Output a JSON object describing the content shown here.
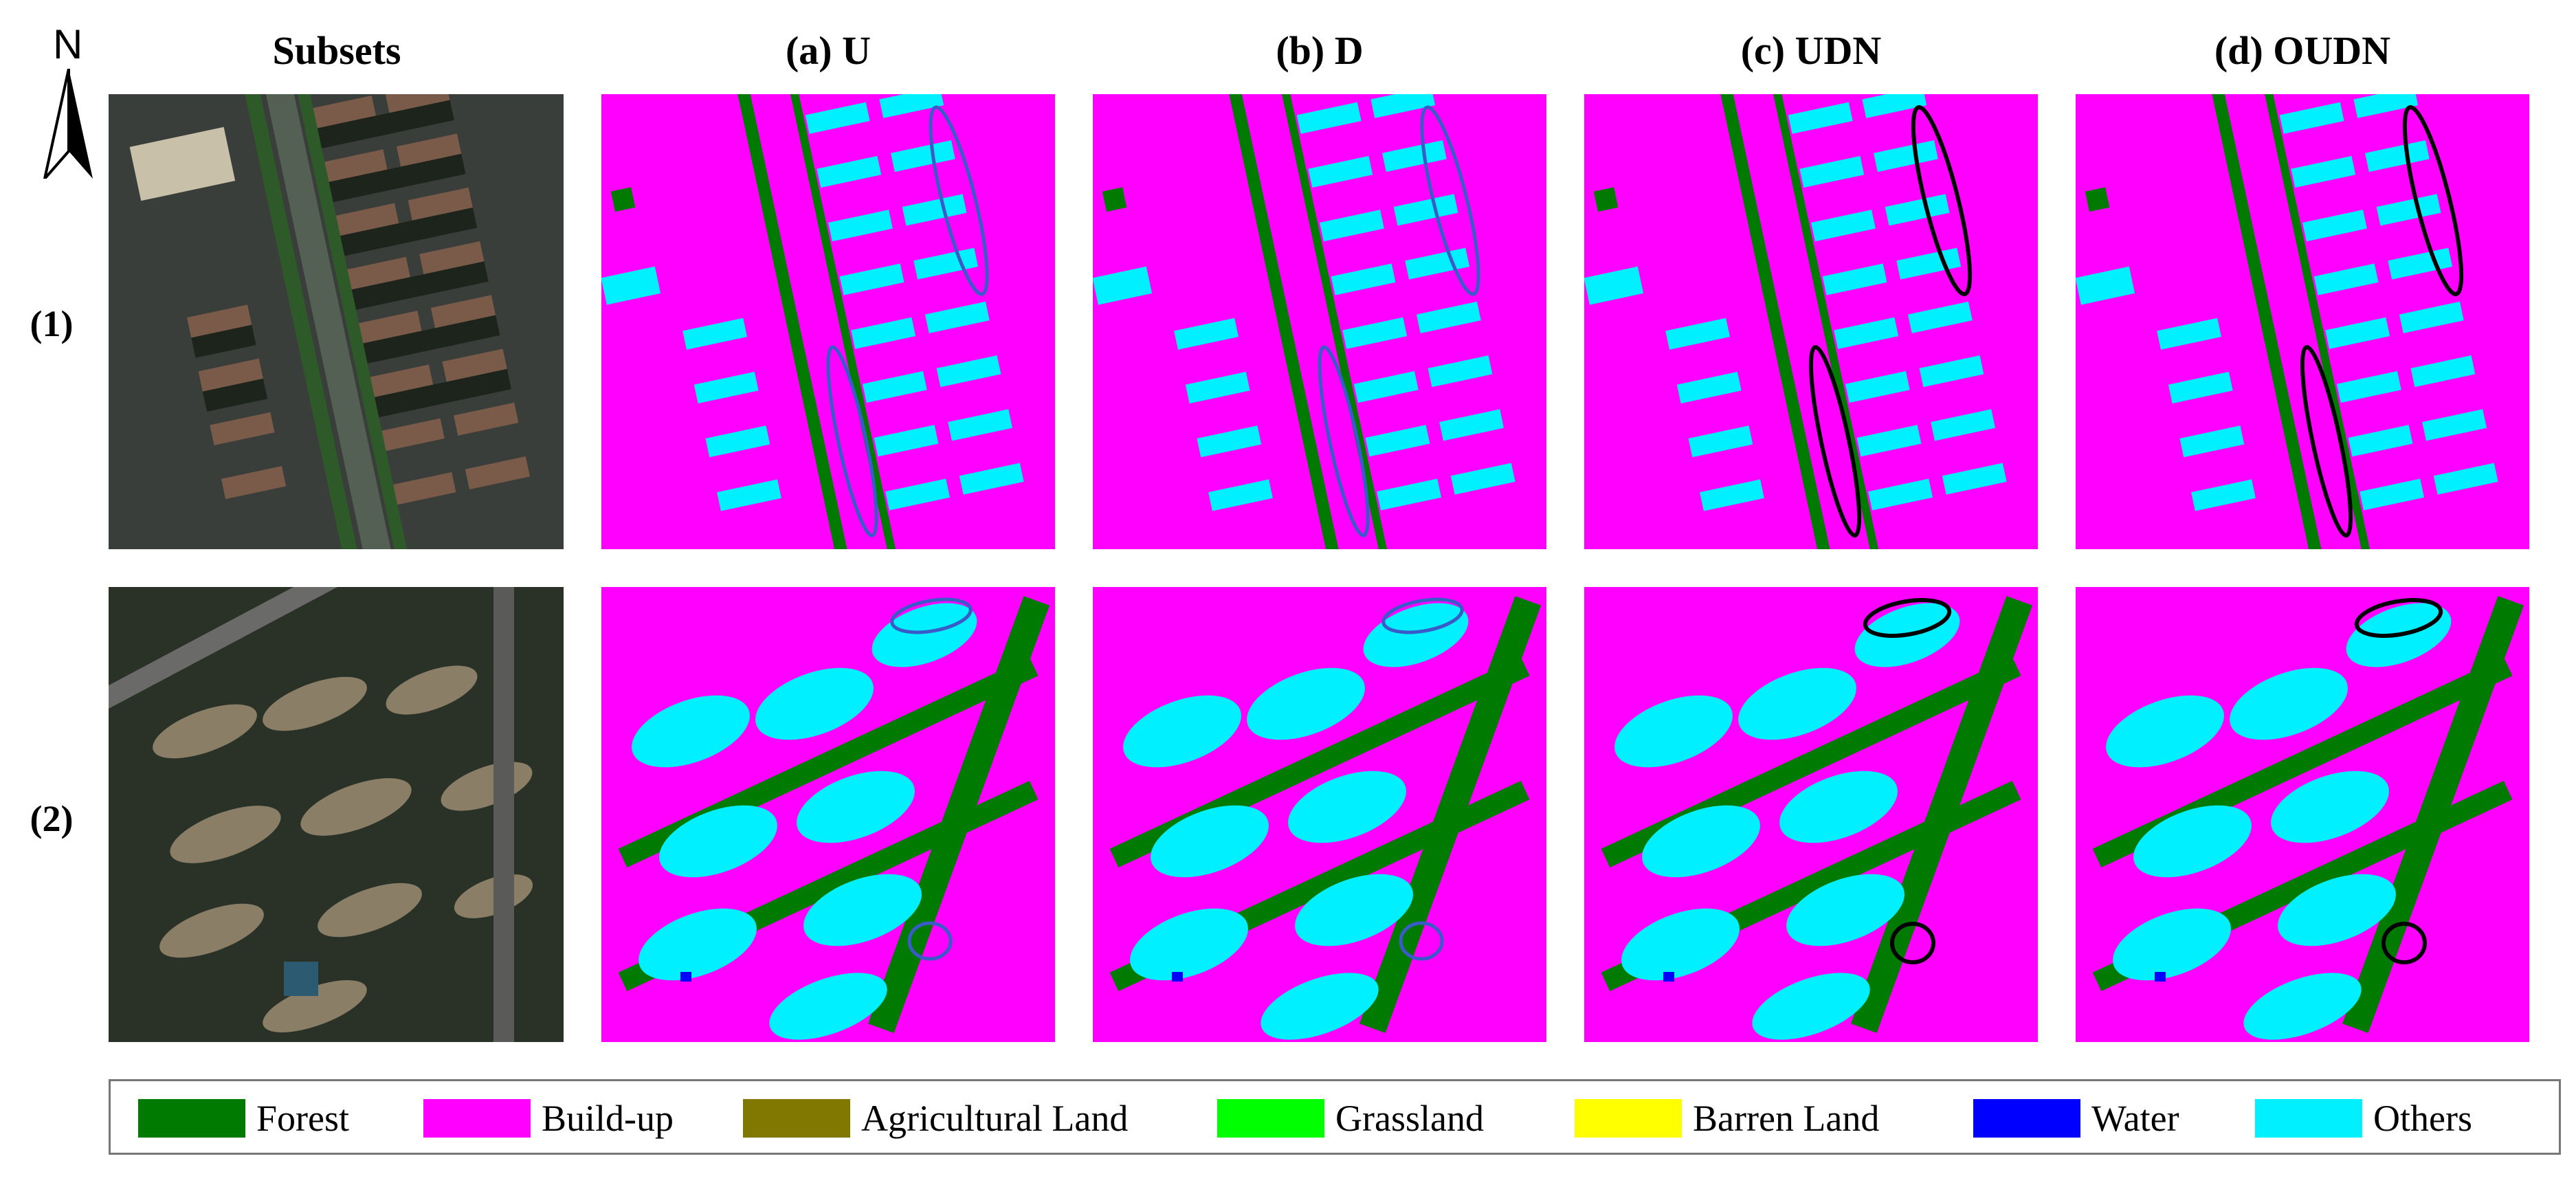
{
  "north_arrow": {
    "label": "N"
  },
  "columns": [
    {
      "id": "subsets",
      "title": "Subsets"
    },
    {
      "id": "a",
      "title": "(a) U"
    },
    {
      "id": "b",
      "title": "(b) D"
    },
    {
      "id": "c",
      "title": "(c) UDN"
    },
    {
      "id": "d",
      "title": "(d) OUDN"
    }
  ],
  "rows": [
    {
      "id": "1",
      "label": "(1)"
    },
    {
      "id": "2",
      "label": "(2)"
    }
  ],
  "legend": [
    {
      "label": "Forest",
      "color": "#007A00"
    },
    {
      "label": "Build-up",
      "color": "#FF00FF"
    },
    {
      "label": "Agricultural Land",
      "color": "#807800"
    },
    {
      "label": "Grassland",
      "color": "#00FF00"
    },
    {
      "label": "Barren Land",
      "color": "#FFFF00"
    },
    {
      "label": "Water",
      "color": "#0000FF"
    },
    {
      "label": "Others",
      "color": "#00F0FF"
    }
  ],
  "highlight_colors": {
    "comparison": "#3A5BC7",
    "proposed": "#000000"
  }
}
